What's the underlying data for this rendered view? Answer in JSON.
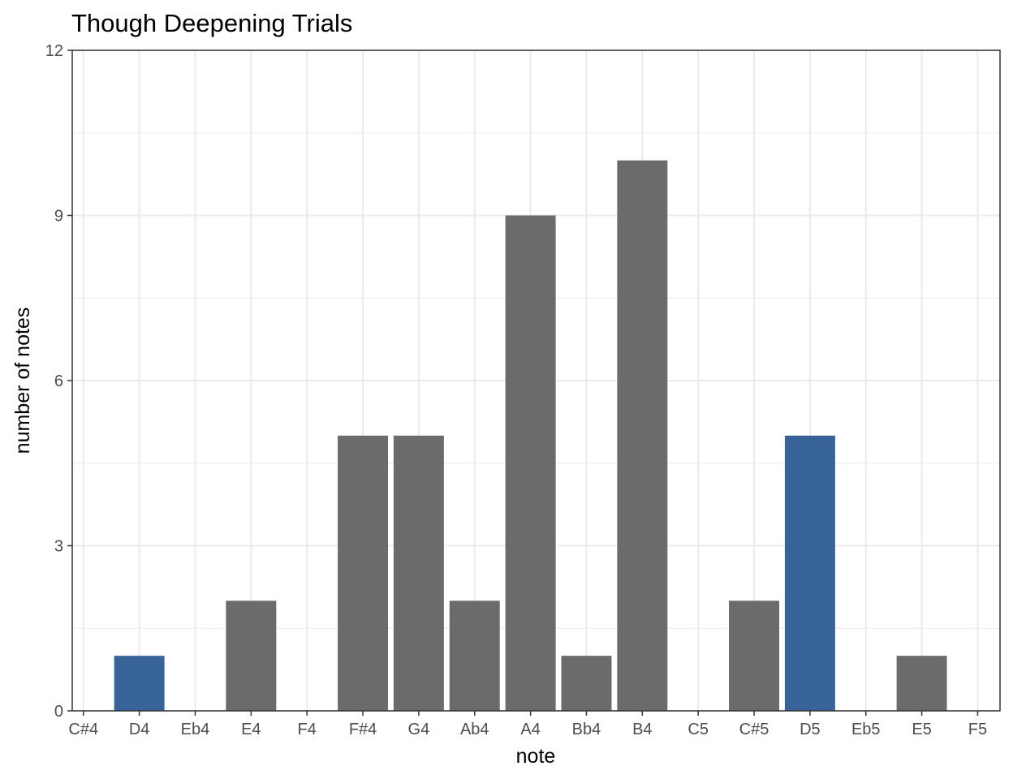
{
  "chart_data": {
    "type": "bar",
    "title": "Though Deepening Trials",
    "xlabel": "note",
    "ylabel": "number of notes",
    "categories": [
      "C#4",
      "D4",
      "Eb4",
      "E4",
      "F4",
      "F#4",
      "G4",
      "Ab4",
      "A4",
      "Bb4",
      "B4",
      "C5",
      "C#5",
      "D5",
      "Eb5",
      "E5",
      "F5"
    ],
    "values": [
      0,
      1,
      0,
      2,
      0,
      5,
      5,
      2,
      9,
      1,
      10,
      0,
      2,
      5,
      0,
      1,
      0
    ],
    "highlighted": [
      "D4",
      "D5"
    ],
    "ylim": [
      0,
      12
    ],
    "yticks": [
      0,
      3,
      6,
      9,
      12
    ],
    "grid": true,
    "colors": {
      "bar": "#6b6b6b",
      "highlight": "#386399",
      "grid": "#ebebeb",
      "panel_border": "#333333"
    }
  }
}
